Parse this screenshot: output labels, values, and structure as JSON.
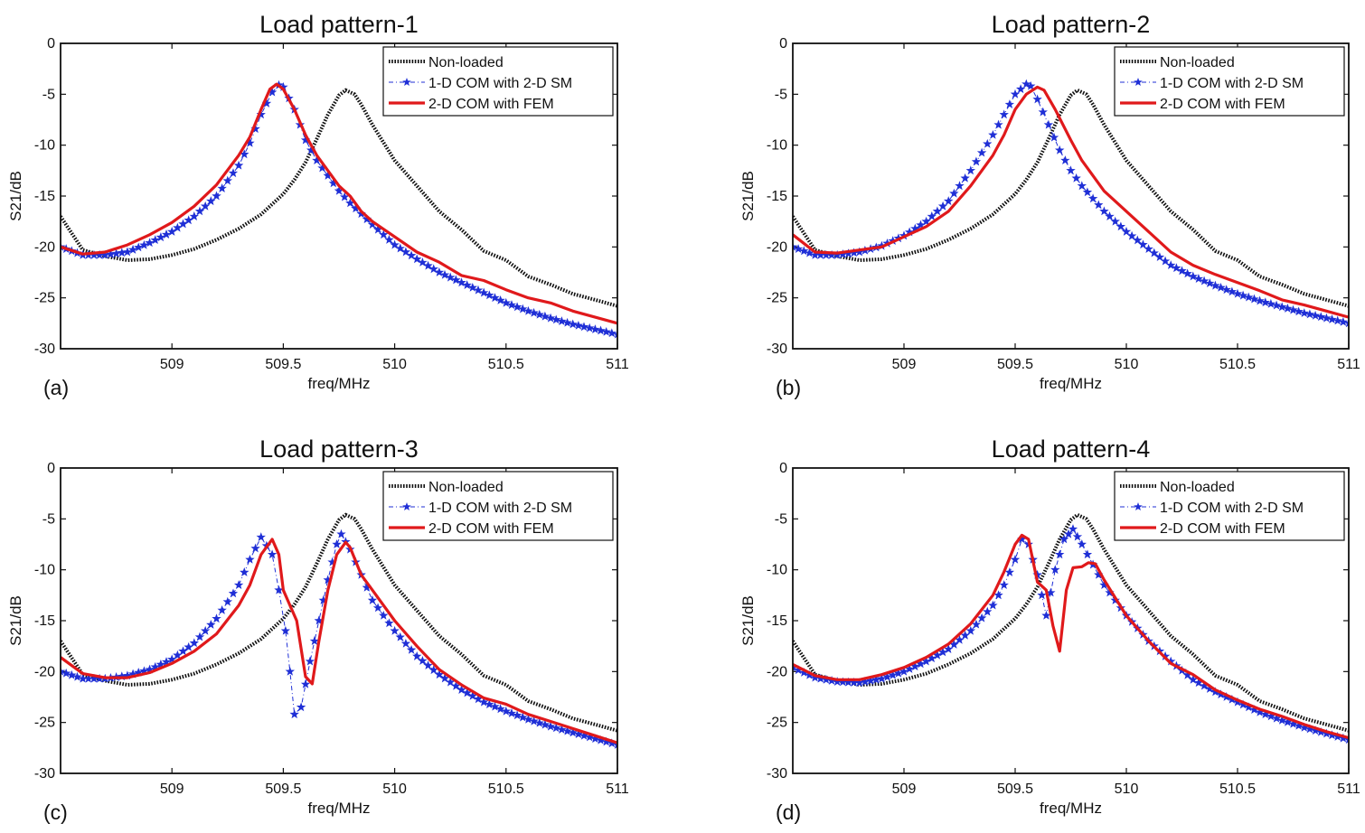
{
  "figure": {
    "kind": "4-panel S21 frequency response comparison"
  },
  "series_styles": {
    "Non-loaded": {
      "color": "#111111",
      "style": "dotted-thick"
    },
    "1-D COM with 2-D SM": {
      "color": "#1f2fd6",
      "style": "dashdot-star-markers"
    },
    "2-D COM with FEM": {
      "color": "#e0191b",
      "style": "solid-thick"
    }
  },
  "chart_data": [
    {
      "type": "line",
      "panel_label": "(a)",
      "title": "Load pattern-1",
      "xlabel": "freq/MHz",
      "ylabel": "S21/dB",
      "xlim": [
        508.5,
        511
      ],
      "ylim": [
        -30,
        0
      ],
      "xticks": [
        509,
        509.5,
        510,
        510.5,
        511
      ],
      "yticks": [
        0,
        -5,
        -10,
        -15,
        -20,
        -25,
        -30
      ],
      "legend_position": "top-right",
      "series": [
        {
          "name": "Non-loaded",
          "x": [
            508.5,
            508.6,
            508.7,
            508.8,
            508.9,
            509.0,
            509.1,
            509.2,
            509.3,
            509.4,
            509.5,
            509.55,
            509.6,
            509.65,
            509.7,
            509.75,
            509.78,
            509.82,
            509.85,
            509.9,
            510.0,
            510.1,
            510.2,
            510.3,
            510.4,
            510.5,
            510.6,
            510.7,
            510.8,
            510.9,
            511.0
          ],
          "y": [
            -17,
            -20.3,
            -20.9,
            -21.3,
            -21.2,
            -20.8,
            -20.2,
            -19.3,
            -18.2,
            -16.8,
            -14.8,
            -13.4,
            -11.7,
            -9.4,
            -7.0,
            -5.1,
            -4.6,
            -5.0,
            -6.0,
            -8.0,
            -11.5,
            -14.0,
            -16.5,
            -18.3,
            -20.4,
            -21.3,
            -22.9,
            -23.7,
            -24.6,
            -25.2,
            -25.8
          ]
        },
        {
          "name": "1-D COM with 2-D SM",
          "x": [
            508.5,
            508.6,
            508.7,
            508.8,
            508.9,
            509.0,
            509.1,
            509.2,
            509.3,
            509.35,
            509.4,
            509.45,
            509.48,
            509.5,
            509.55,
            509.6,
            509.65,
            509.7,
            509.75,
            509.8,
            509.9,
            510.0,
            510.1,
            510.2,
            510.3,
            510.4,
            510.5,
            510.6,
            510.7,
            510.8,
            510.9,
            511.0
          ],
          "y": [
            -20,
            -20.8,
            -20.8,
            -20.5,
            -19.6,
            -18.5,
            -17.0,
            -15.0,
            -12.0,
            -9.8,
            -7.0,
            -4.8,
            -4.1,
            -4.3,
            -6.5,
            -9.5,
            -11.5,
            -13.0,
            -14.5,
            -15.7,
            -17.8,
            -19.8,
            -21.2,
            -22.5,
            -23.5,
            -24.5,
            -25.5,
            -26.3,
            -27.0,
            -27.6,
            -28.1,
            -28.6
          ]
        },
        {
          "name": "2-D COM with FEM",
          "x": [
            508.5,
            508.6,
            508.7,
            508.8,
            508.9,
            509.0,
            509.1,
            509.2,
            509.3,
            509.35,
            509.4,
            509.44,
            509.47,
            509.5,
            509.55,
            509.6,
            509.65,
            509.7,
            509.75,
            509.8,
            509.85,
            509.9,
            510.0,
            510.1,
            510.2,
            510.3,
            510.4,
            510.5,
            510.6,
            510.7,
            510.8,
            510.9,
            511.0
          ],
          "y": [
            -20,
            -20.7,
            -20.5,
            -19.8,
            -18.8,
            -17.6,
            -16.0,
            -13.9,
            -11.0,
            -9.2,
            -6.5,
            -4.5,
            -4.0,
            -4.5,
            -6.5,
            -9.0,
            -11.0,
            -12.5,
            -14.0,
            -15.0,
            -16.5,
            -17.5,
            -19.0,
            -20.5,
            -21.5,
            -22.8,
            -23.3,
            -24.2,
            -25.0,
            -25.5,
            -26.3,
            -26.9,
            -27.5
          ]
        }
      ]
    },
    {
      "type": "line",
      "panel_label": "(b)",
      "title": "Load pattern-2",
      "xlabel": "freq/MHz",
      "ylabel": "S21/dB",
      "xlim": [
        508.5,
        511
      ],
      "ylim": [
        -30,
        0
      ],
      "xticks": [
        509,
        509.5,
        510,
        510.5,
        511
      ],
      "yticks": [
        0,
        -5,
        -10,
        -15,
        -20,
        -25,
        -30
      ],
      "legend_position": "top-right",
      "series": [
        {
          "name": "Non-loaded",
          "x": [
            508.5,
            508.6,
            508.7,
            508.8,
            508.9,
            509.0,
            509.1,
            509.2,
            509.3,
            509.4,
            509.5,
            509.55,
            509.6,
            509.65,
            509.7,
            509.75,
            509.78,
            509.82,
            509.85,
            509.9,
            510.0,
            510.1,
            510.2,
            510.3,
            510.4,
            510.5,
            510.6,
            510.7,
            510.8,
            510.9,
            511.0
          ],
          "y": [
            -17,
            -20.3,
            -20.9,
            -21.3,
            -21.2,
            -20.8,
            -20.2,
            -19.3,
            -18.2,
            -16.8,
            -14.8,
            -13.4,
            -11.7,
            -9.4,
            -7.0,
            -5.1,
            -4.6,
            -5.0,
            -6.0,
            -8.0,
            -11.5,
            -14.0,
            -16.5,
            -18.3,
            -20.4,
            -21.3,
            -22.9,
            -23.7,
            -24.6,
            -25.2,
            -25.8
          ]
        },
        {
          "name": "1-D COM with 2-D SM",
          "x": [
            508.5,
            508.6,
            508.7,
            508.8,
            508.9,
            509.0,
            509.1,
            509.2,
            509.3,
            509.4,
            509.45,
            509.5,
            509.55,
            509.57,
            509.6,
            509.65,
            509.7,
            509.75,
            509.8,
            509.9,
            510.0,
            510.1,
            510.2,
            510.3,
            510.4,
            510.5,
            510.6,
            510.7,
            510.8,
            510.9,
            511.0
          ],
          "y": [
            -20,
            -20.8,
            -20.8,
            -20.5,
            -19.9,
            -18.9,
            -17.5,
            -15.5,
            -12.5,
            -9.0,
            -7.0,
            -5.0,
            -4.0,
            -4.2,
            -5.5,
            -8.0,
            -10.5,
            -12.5,
            -14.0,
            -16.5,
            -18.5,
            -20.2,
            -21.8,
            -22.9,
            -23.8,
            -24.6,
            -25.3,
            -25.9,
            -26.5,
            -27.0,
            -27.5
          ]
        },
        {
          "name": "2-D COM with FEM",
          "x": [
            508.5,
            508.6,
            508.7,
            508.8,
            508.9,
            509.0,
            509.1,
            509.2,
            509.3,
            509.4,
            509.45,
            509.5,
            509.55,
            509.6,
            509.63,
            509.68,
            509.75,
            509.8,
            509.9,
            510.0,
            510.1,
            510.2,
            510.3,
            510.4,
            510.5,
            510.6,
            510.7,
            510.8,
            510.9,
            511.0
          ],
          "y": [
            -18.8,
            -20.5,
            -20.6,
            -20.3,
            -20.0,
            -19.0,
            -18.0,
            -16.5,
            -14.0,
            -11.0,
            -9.0,
            -6.5,
            -5.0,
            -4.3,
            -4.6,
            -6.5,
            -9.5,
            -11.5,
            -14.5,
            -16.5,
            -18.5,
            -20.5,
            -21.8,
            -22.7,
            -23.5,
            -24.3,
            -25.2,
            -25.7,
            -26.3,
            -26.9
          ]
        }
      ]
    },
    {
      "type": "line",
      "panel_label": "(c)",
      "title": "Load pattern-3",
      "xlabel": "freq/MHz",
      "ylabel": "S21/dB",
      "xlim": [
        508.5,
        511
      ],
      "ylim": [
        -30,
        0
      ],
      "xticks": [
        509,
        509.5,
        510,
        510.5,
        511
      ],
      "yticks": [
        0,
        -5,
        -10,
        -15,
        -20,
        -25,
        -30
      ],
      "legend_position": "top-right",
      "series": [
        {
          "name": "Non-loaded",
          "x": [
            508.5,
            508.6,
            508.7,
            508.8,
            508.9,
            509.0,
            509.1,
            509.2,
            509.3,
            509.4,
            509.5,
            509.55,
            509.6,
            509.65,
            509.7,
            509.75,
            509.78,
            509.82,
            509.85,
            509.9,
            510.0,
            510.1,
            510.2,
            510.3,
            510.4,
            510.5,
            510.6,
            510.7,
            510.8,
            510.9,
            511.0
          ],
          "y": [
            -17,
            -20.3,
            -20.9,
            -21.3,
            -21.2,
            -20.8,
            -20.2,
            -19.3,
            -18.2,
            -16.8,
            -14.8,
            -13.4,
            -11.7,
            -9.4,
            -7.0,
            -5.1,
            -4.6,
            -5.0,
            -6.0,
            -8.0,
            -11.5,
            -14.0,
            -16.5,
            -18.3,
            -20.4,
            -21.3,
            -22.9,
            -23.7,
            -24.6,
            -25.2,
            -25.8
          ]
        },
        {
          "name": "1-D COM with 2-D SM",
          "x": [
            508.5,
            508.6,
            508.7,
            508.8,
            508.9,
            509.0,
            509.1,
            509.2,
            509.3,
            509.35,
            509.4,
            509.45,
            509.48,
            509.51,
            509.53,
            509.55,
            509.58,
            509.62,
            509.66,
            509.7,
            509.74,
            509.76,
            509.8,
            509.85,
            509.9,
            510.0,
            510.1,
            510.2,
            510.3,
            510.4,
            510.5,
            510.6,
            510.7,
            510.8,
            510.9,
            511.0
          ],
          "y": [
            -20,
            -20.7,
            -20.7,
            -20.4,
            -19.8,
            -18.8,
            -17.2,
            -14.8,
            -11.5,
            -9.0,
            -6.8,
            -8.5,
            -12.0,
            -16.0,
            -20.0,
            -24.2,
            -23.5,
            -19.0,
            -15.0,
            -11.0,
            -7.5,
            -6.5,
            -8.0,
            -10.5,
            -13.0,
            -16.0,
            -18.5,
            -20.3,
            -21.8,
            -23.0,
            -23.9,
            -24.7,
            -25.4,
            -26.0,
            -26.6,
            -27.2
          ]
        },
        {
          "name": "2-D COM with FEM",
          "x": [
            508.5,
            508.6,
            508.7,
            508.8,
            508.9,
            509.0,
            509.1,
            509.2,
            509.3,
            509.35,
            509.4,
            509.45,
            509.48,
            509.5,
            509.53,
            509.56,
            509.6,
            509.63,
            509.66,
            509.7,
            509.74,
            509.78,
            509.8,
            509.85,
            509.9,
            510.0,
            510.1,
            510.2,
            510.3,
            510.4,
            510.5,
            510.6,
            510.7,
            510.8,
            510.9,
            511.0
          ],
          "y": [
            -18.6,
            -20.2,
            -20.6,
            -20.6,
            -20.1,
            -19.2,
            -18.0,
            -16.3,
            -13.5,
            -11.5,
            -8.5,
            -7.0,
            -8.5,
            -12.0,
            -13.5,
            -15.0,
            -20.5,
            -21.2,
            -17.0,
            -12.0,
            -8.5,
            -7.3,
            -7.8,
            -10.5,
            -12.0,
            -15.0,
            -17.5,
            -19.8,
            -21.3,
            -22.6,
            -23.2,
            -24.2,
            -24.9,
            -25.6,
            -26.3,
            -27.0
          ]
        }
      ]
    },
    {
      "type": "line",
      "panel_label": "(d)",
      "title": "Load pattern-4",
      "xlabel": "freq/MHz",
      "ylabel": "S21/dB",
      "xlim": [
        508.5,
        511
      ],
      "ylim": [
        -30,
        0
      ],
      "xticks": [
        509,
        509.5,
        510,
        510.5,
        511
      ],
      "yticks": [
        0,
        -5,
        -10,
        -15,
        -20,
        -25,
        -30
      ],
      "legend_position": "top-right",
      "series": [
        {
          "name": "Non-loaded",
          "x": [
            508.5,
            508.6,
            508.7,
            508.8,
            508.9,
            509.0,
            509.1,
            509.2,
            509.3,
            509.4,
            509.5,
            509.55,
            509.6,
            509.65,
            509.7,
            509.75,
            509.78,
            509.82,
            509.85,
            509.9,
            510.0,
            510.1,
            510.2,
            510.3,
            510.4,
            510.5,
            510.6,
            510.7,
            510.8,
            510.9,
            511.0
          ],
          "y": [
            -17,
            -20.3,
            -20.9,
            -21.3,
            -21.2,
            -20.8,
            -20.2,
            -19.3,
            -18.2,
            -16.8,
            -14.8,
            -13.4,
            -11.7,
            -9.4,
            -7.0,
            -5.1,
            -4.6,
            -5.0,
            -6.0,
            -8.0,
            -11.5,
            -14.0,
            -16.5,
            -18.3,
            -20.4,
            -21.3,
            -22.9,
            -23.7,
            -24.6,
            -25.2,
            -25.8
          ]
        },
        {
          "name": "1-D COM with 2-D SM",
          "x": [
            508.5,
            508.6,
            508.7,
            508.8,
            508.9,
            509.0,
            509.1,
            509.2,
            509.3,
            509.4,
            509.45,
            509.5,
            509.53,
            509.56,
            509.6,
            509.64,
            509.68,
            509.72,
            509.76,
            509.8,
            509.85,
            509.9,
            510.0,
            510.1,
            510.2,
            510.3,
            510.4,
            510.5,
            510.6,
            510.7,
            510.8,
            510.9,
            511.0
          ],
          "y": [
            -19.6,
            -20.6,
            -21.0,
            -21.1,
            -20.7,
            -20.0,
            -19.0,
            -17.8,
            -16.0,
            -13.5,
            -11.5,
            -9.0,
            -7.0,
            -7.5,
            -10.5,
            -14.5,
            -10.0,
            -7.0,
            -6.0,
            -7.5,
            -9.5,
            -11.5,
            -14.5,
            -17.0,
            -19.0,
            -20.8,
            -22.0,
            -23.0,
            -24.0,
            -24.8,
            -25.5,
            -26.1,
            -26.7
          ]
        },
        {
          "name": "2-D COM with FEM",
          "x": [
            508.5,
            508.6,
            508.7,
            508.8,
            508.9,
            509.0,
            509.1,
            509.2,
            509.3,
            509.4,
            509.45,
            509.5,
            509.53,
            509.56,
            509.6,
            509.64,
            509.67,
            509.7,
            509.73,
            509.76,
            509.8,
            509.83,
            509.86,
            509.9,
            510.0,
            510.1,
            510.2,
            510.3,
            510.4,
            510.5,
            510.6,
            510.7,
            510.8,
            510.9,
            511.0
          ],
          "y": [
            -19.3,
            -20.4,
            -20.8,
            -20.8,
            -20.3,
            -19.6,
            -18.6,
            -17.3,
            -15.3,
            -12.5,
            -10.2,
            -7.5,
            -6.6,
            -7.0,
            -11.2,
            -12.0,
            -15.5,
            -18.0,
            -12.0,
            -9.8,
            -9.7,
            -9.3,
            -9.4,
            -11.0,
            -14.5,
            -17.0,
            -19.2,
            -20.3,
            -21.8,
            -22.8,
            -23.7,
            -24.4,
            -25.2,
            -25.9,
            -26.5
          ]
        }
      ]
    }
  ]
}
